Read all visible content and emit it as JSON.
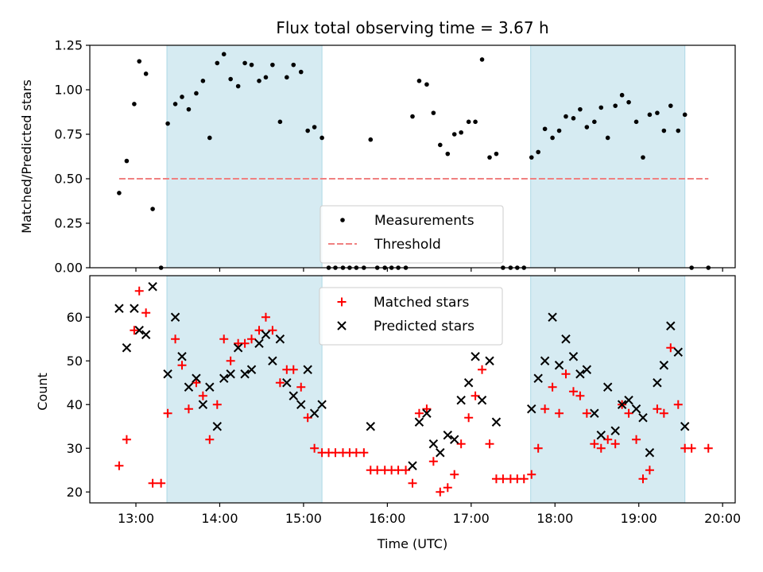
{
  "chart_data": [
    {
      "type": "scatter",
      "title": "Flux total observing time = 3.67 h",
      "xlabel": "",
      "ylabel": "Matched/Predicted stars",
      "xlim": [
        12.45,
        20.15
      ],
      "ylim": [
        0,
        1.25
      ],
      "yticks": [
        0,
        0.25,
        0.5,
        0.75,
        1.0,
        1.25
      ],
      "ytick_labels": [
        "0.00",
        "0.25",
        "0.50",
        "0.75",
        "1.00",
        "1.25"
      ],
      "xticks": [
        13,
        14,
        15,
        16,
        17,
        18,
        19,
        20
      ],
      "shaded_intervals": [
        [
          13.37,
          15.22
        ],
        [
          17.71,
          19.55
        ]
      ],
      "shade_color": "#add8e6",
      "legend_position": "lower center",
      "series": [
        {
          "name": "Measurements",
          "marker": "dot",
          "color": "#000000",
          "x": [
            12.8,
            12.89,
            12.98,
            13.04,
            13.12,
            13.2,
            13.3,
            13.38,
            13.47,
            13.55,
            13.63,
            13.72,
            13.8,
            13.88,
            13.97,
            14.05,
            14.13,
            14.22,
            14.3,
            14.38,
            14.47,
            14.55,
            14.63,
            14.72,
            14.8,
            14.88,
            14.97,
            15.05,
            15.13,
            15.22,
            15.3,
            15.38,
            15.47,
            15.55,
            15.63,
            15.72,
            15.8,
            15.88,
            15.97,
            16.05,
            16.13,
            16.22,
            16.3,
            16.38,
            16.47,
            16.55,
            16.63,
            16.72,
            16.8,
            16.88,
            16.97,
            17.05,
            17.13,
            17.22,
            17.3,
            17.38,
            17.47,
            17.55,
            17.63,
            17.72,
            17.8,
            17.88,
            17.97,
            18.05,
            18.13,
            18.22,
            18.3,
            18.38,
            18.47,
            18.55,
            18.63,
            18.72,
            18.8,
            18.88,
            18.97,
            19.05,
            19.13,
            19.22,
            19.3,
            19.38,
            19.47,
            19.55,
            19.63,
            19.83
          ],
          "y": [
            0.42,
            0.6,
            0.92,
            1.16,
            1.09,
            0.33,
            0.0,
            0.81,
            0.92,
            0.96,
            0.89,
            0.98,
            1.05,
            0.73,
            1.15,
            1.2,
            1.06,
            1.02,
            1.15,
            1.14,
            1.05,
            1.07,
            1.14,
            0.82,
            1.07,
            1.14,
            1.1,
            0.77,
            0.79,
            0.73,
            0.0,
            0.0,
            0.0,
            0.0,
            0.0,
            0.0,
            0.72,
            0.0,
            0.0,
            0.0,
            0.0,
            0.0,
            0.85,
            1.05,
            1.03,
            0.87,
            0.69,
            0.64,
            0.75,
            0.76,
            0.82,
            0.82,
            1.17,
            0.62,
            0.64,
            0.0,
            0.0,
            0.0,
            0.0,
            0.62,
            0.65,
            0.78,
            0.73,
            0.77,
            0.85,
            0.84,
            0.89,
            0.79,
            0.82,
            0.9,
            0.73,
            0.91,
            0.97,
            0.93,
            0.82,
            0.62,
            0.86,
            0.87,
            0.77,
            0.91,
            0.77,
            0.86,
            0.0,
            0.0
          ]
        },
        {
          "name": "Threshold",
          "type": "line",
          "style": "dashed",
          "color": "#f08080",
          "x": [
            12.8,
            19.83
          ],
          "y": [
            0.5,
            0.5
          ]
        }
      ]
    },
    {
      "type": "scatter",
      "title": "",
      "xlabel": "Time (UTC)",
      "ylabel": "Count",
      "xlim": [
        12.45,
        20.15
      ],
      "ylim": [
        17.5,
        69.5
      ],
      "yticks": [
        20,
        30,
        40,
        50,
        60
      ],
      "xticks": [
        13,
        14,
        15,
        16,
        17,
        18,
        19,
        20
      ],
      "xtick_labels": [
        "13:00",
        "14:00",
        "15:00",
        "16:00",
        "17:00",
        "18:00",
        "19:00",
        "20:00"
      ],
      "shaded_intervals": [
        [
          13.37,
          15.22
        ],
        [
          17.71,
          19.55
        ]
      ],
      "shade_color": "#add8e6",
      "legend_position": "upper center",
      "series": [
        {
          "name": "Matched stars",
          "marker": "plus",
          "color": "#ff0000",
          "x": [
            12.8,
            12.89,
            12.98,
            13.04,
            13.12,
            13.2,
            13.3,
            13.38,
            13.47,
            13.55,
            13.63,
            13.72,
            13.8,
            13.88,
            13.97,
            14.05,
            14.13,
            14.22,
            14.3,
            14.38,
            14.47,
            14.55,
            14.63,
            14.72,
            14.8,
            14.88,
            14.97,
            15.05,
            15.13,
            15.22,
            15.3,
            15.38,
            15.47,
            15.55,
            15.63,
            15.72,
            15.8,
            15.88,
            15.97,
            16.05,
            16.13,
            16.22,
            16.3,
            16.38,
            16.47,
            16.55,
            16.63,
            16.72,
            16.8,
            16.88,
            16.97,
            17.05,
            17.13,
            17.22,
            17.3,
            17.38,
            17.47,
            17.55,
            17.63,
            17.72,
            17.8,
            17.88,
            17.97,
            18.05,
            18.13,
            18.22,
            18.3,
            18.38,
            18.47,
            18.55,
            18.63,
            18.72,
            18.8,
            18.88,
            18.97,
            19.05,
            19.13,
            19.22,
            19.3,
            19.38,
            19.47,
            19.55,
            19.63,
            19.83
          ],
          "y": [
            26,
            32,
            57,
            66,
            61,
            22,
            22,
            38,
            55,
            49,
            39,
            45,
            42,
            32,
            40,
            55,
            50,
            54,
            54,
            55,
            57,
            60,
            57,
            45,
            48,
            48,
            44,
            37,
            30,
            29,
            29,
            29,
            29,
            29,
            29,
            29,
            25,
            25,
            25,
            25,
            25,
            25,
            22,
            38,
            39,
            27,
            20,
            21,
            24,
            31,
            37,
            42,
            48,
            31,
            23,
            23,
            23,
            23,
            23,
            24,
            30,
            39,
            44,
            38,
            47,
            43,
            42,
            38,
            31,
            30,
            32,
            31,
            40,
            38,
            32,
            23,
            25,
            39,
            38,
            53,
            40,
            30,
            30,
            30
          ]
        },
        {
          "name": "Predicted stars",
          "marker": "x",
          "color": "#000000",
          "x": [
            12.8,
            12.89,
            12.98,
            13.04,
            13.12,
            13.2,
            13.38,
            13.47,
            13.55,
            13.63,
            13.72,
            13.8,
            13.88,
            13.97,
            14.05,
            14.13,
            14.22,
            14.3,
            14.38,
            14.47,
            14.55,
            14.63,
            14.72,
            14.8,
            14.88,
            14.97,
            15.05,
            15.13,
            15.22,
            15.8,
            16.3,
            16.38,
            16.47,
            16.55,
            16.63,
            16.72,
            16.8,
            16.88,
            16.97,
            17.05,
            17.13,
            17.22,
            17.3,
            17.72,
            17.8,
            17.88,
            17.97,
            18.05,
            18.13,
            18.22,
            18.3,
            18.38,
            18.47,
            18.55,
            18.63,
            18.72,
            18.8,
            18.88,
            18.97,
            19.05,
            19.13,
            19.22,
            19.3,
            19.38,
            19.47,
            19.55
          ],
          "y": [
            62,
            53,
            62,
            57,
            56,
            67,
            47,
            60,
            51,
            44,
            46,
            40,
            44,
            35,
            46,
            47,
            53,
            47,
            48,
            54,
            56,
            50,
            55,
            45,
            42,
            40,
            48,
            38,
            40,
            35,
            26,
            36,
            38,
            31,
            29,
            33,
            32,
            41,
            45,
            51,
            41,
            50,
            36,
            39,
            46,
            50,
            60,
            49,
            55,
            51,
            47,
            48,
            38,
            33,
            44,
            34,
            40,
            41,
            39,
            37,
            29,
            45,
            49,
            58,
            52,
            35
          ]
        }
      ]
    }
  ]
}
